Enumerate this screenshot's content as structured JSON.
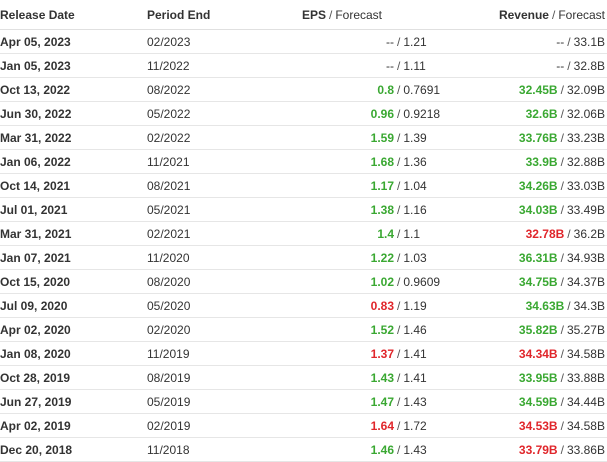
{
  "table": {
    "headers": {
      "release_date": "Release Date",
      "period_end": "Period End",
      "eps": "EPS",
      "eps_forecast": "Forecast",
      "revenue": "Revenue",
      "revenue_forecast": "Forecast",
      "separator": "/"
    },
    "rows": [
      {
        "release_date": "Apr 05, 2023",
        "period_end": "02/2023",
        "eps": "--",
        "eps_forecast": "1.21",
        "eps_status": "neutral",
        "revenue": "--",
        "revenue_forecast": "33.1B",
        "revenue_status": "neutral"
      },
      {
        "release_date": "Jan 05, 2023",
        "period_end": "11/2022",
        "eps": "--",
        "eps_forecast": "1.11",
        "eps_status": "neutral",
        "revenue": "--",
        "revenue_forecast": "32.8B",
        "revenue_status": "neutral"
      },
      {
        "release_date": "Oct 13, 2022",
        "period_end": "08/2022",
        "eps": "0.8",
        "eps_forecast": "0.7691",
        "eps_status": "pos",
        "revenue": "32.45B",
        "revenue_forecast": "32.09B",
        "revenue_status": "pos"
      },
      {
        "release_date": "Jun 30, 2022",
        "period_end": "05/2022",
        "eps": "0.96",
        "eps_forecast": "0.9218",
        "eps_status": "pos",
        "revenue": "32.6B",
        "revenue_forecast": "32.06B",
        "revenue_status": "pos"
      },
      {
        "release_date": "Mar 31, 2022",
        "period_end": "02/2022",
        "eps": "1.59",
        "eps_forecast": "1.39",
        "eps_status": "pos",
        "revenue": "33.76B",
        "revenue_forecast": "33.23B",
        "revenue_status": "pos"
      },
      {
        "release_date": "Jan 06, 2022",
        "period_end": "11/2021",
        "eps": "1.68",
        "eps_forecast": "1.36",
        "eps_status": "pos",
        "revenue": "33.9B",
        "revenue_forecast": "32.88B",
        "revenue_status": "pos"
      },
      {
        "release_date": "Oct 14, 2021",
        "period_end": "08/2021",
        "eps": "1.17",
        "eps_forecast": "1.04",
        "eps_status": "pos",
        "revenue": "34.26B",
        "revenue_forecast": "33.03B",
        "revenue_status": "pos"
      },
      {
        "release_date": "Jul 01, 2021",
        "period_end": "05/2021",
        "eps": "1.38",
        "eps_forecast": "1.16",
        "eps_status": "pos",
        "revenue": "34.03B",
        "revenue_forecast": "33.49B",
        "revenue_status": "pos"
      },
      {
        "release_date": "Mar 31, 2021",
        "period_end": "02/2021",
        "eps": "1.4",
        "eps_forecast": "1.1",
        "eps_status": "pos",
        "revenue": "32.78B",
        "revenue_forecast": "36.2B",
        "revenue_status": "neg"
      },
      {
        "release_date": "Jan 07, 2021",
        "period_end": "11/2020",
        "eps": "1.22",
        "eps_forecast": "1.03",
        "eps_status": "pos",
        "revenue": "36.31B",
        "revenue_forecast": "34.93B",
        "revenue_status": "pos"
      },
      {
        "release_date": "Oct 15, 2020",
        "period_end": "08/2020",
        "eps": "1.02",
        "eps_forecast": "0.9609",
        "eps_status": "pos",
        "revenue": "34.75B",
        "revenue_forecast": "34.37B",
        "revenue_status": "pos"
      },
      {
        "release_date": "Jul 09, 2020",
        "period_end": "05/2020",
        "eps": "0.83",
        "eps_forecast": "1.19",
        "eps_status": "neg",
        "revenue": "34.63B",
        "revenue_forecast": "34.3B",
        "revenue_status": "pos"
      },
      {
        "release_date": "Apr 02, 2020",
        "period_end": "02/2020",
        "eps": "1.52",
        "eps_forecast": "1.46",
        "eps_status": "pos",
        "revenue": "35.82B",
        "revenue_forecast": "35.27B",
        "revenue_status": "pos"
      },
      {
        "release_date": "Jan 08, 2020",
        "period_end": "11/2019",
        "eps": "1.37",
        "eps_forecast": "1.41",
        "eps_status": "neg",
        "revenue": "34.34B",
        "revenue_forecast": "34.58B",
        "revenue_status": "neg"
      },
      {
        "release_date": "Oct 28, 2019",
        "period_end": "08/2019",
        "eps": "1.43",
        "eps_forecast": "1.41",
        "eps_status": "pos",
        "revenue": "33.95B",
        "revenue_forecast": "33.88B",
        "revenue_status": "pos"
      },
      {
        "release_date": "Jun 27, 2019",
        "period_end": "05/2019",
        "eps": "1.47",
        "eps_forecast": "1.43",
        "eps_status": "pos",
        "revenue": "34.59B",
        "revenue_forecast": "34.44B",
        "revenue_status": "pos"
      },
      {
        "release_date": "Apr 02, 2019",
        "period_end": "02/2019",
        "eps": "1.64",
        "eps_forecast": "1.72",
        "eps_status": "neg",
        "revenue": "34.53B",
        "revenue_forecast": "34.58B",
        "revenue_status": "neg"
      },
      {
        "release_date": "Dec 20, 2018",
        "period_end": "11/2018",
        "eps": "1.46",
        "eps_forecast": "1.43",
        "eps_status": "pos",
        "revenue": "33.79B",
        "revenue_forecast": "33.86B",
        "revenue_status": "neg"
      }
    ]
  },
  "colors": {
    "beat": "#3aa832",
    "miss": "#e0262b",
    "text": "#333333",
    "border": "#e6e6e6"
  }
}
